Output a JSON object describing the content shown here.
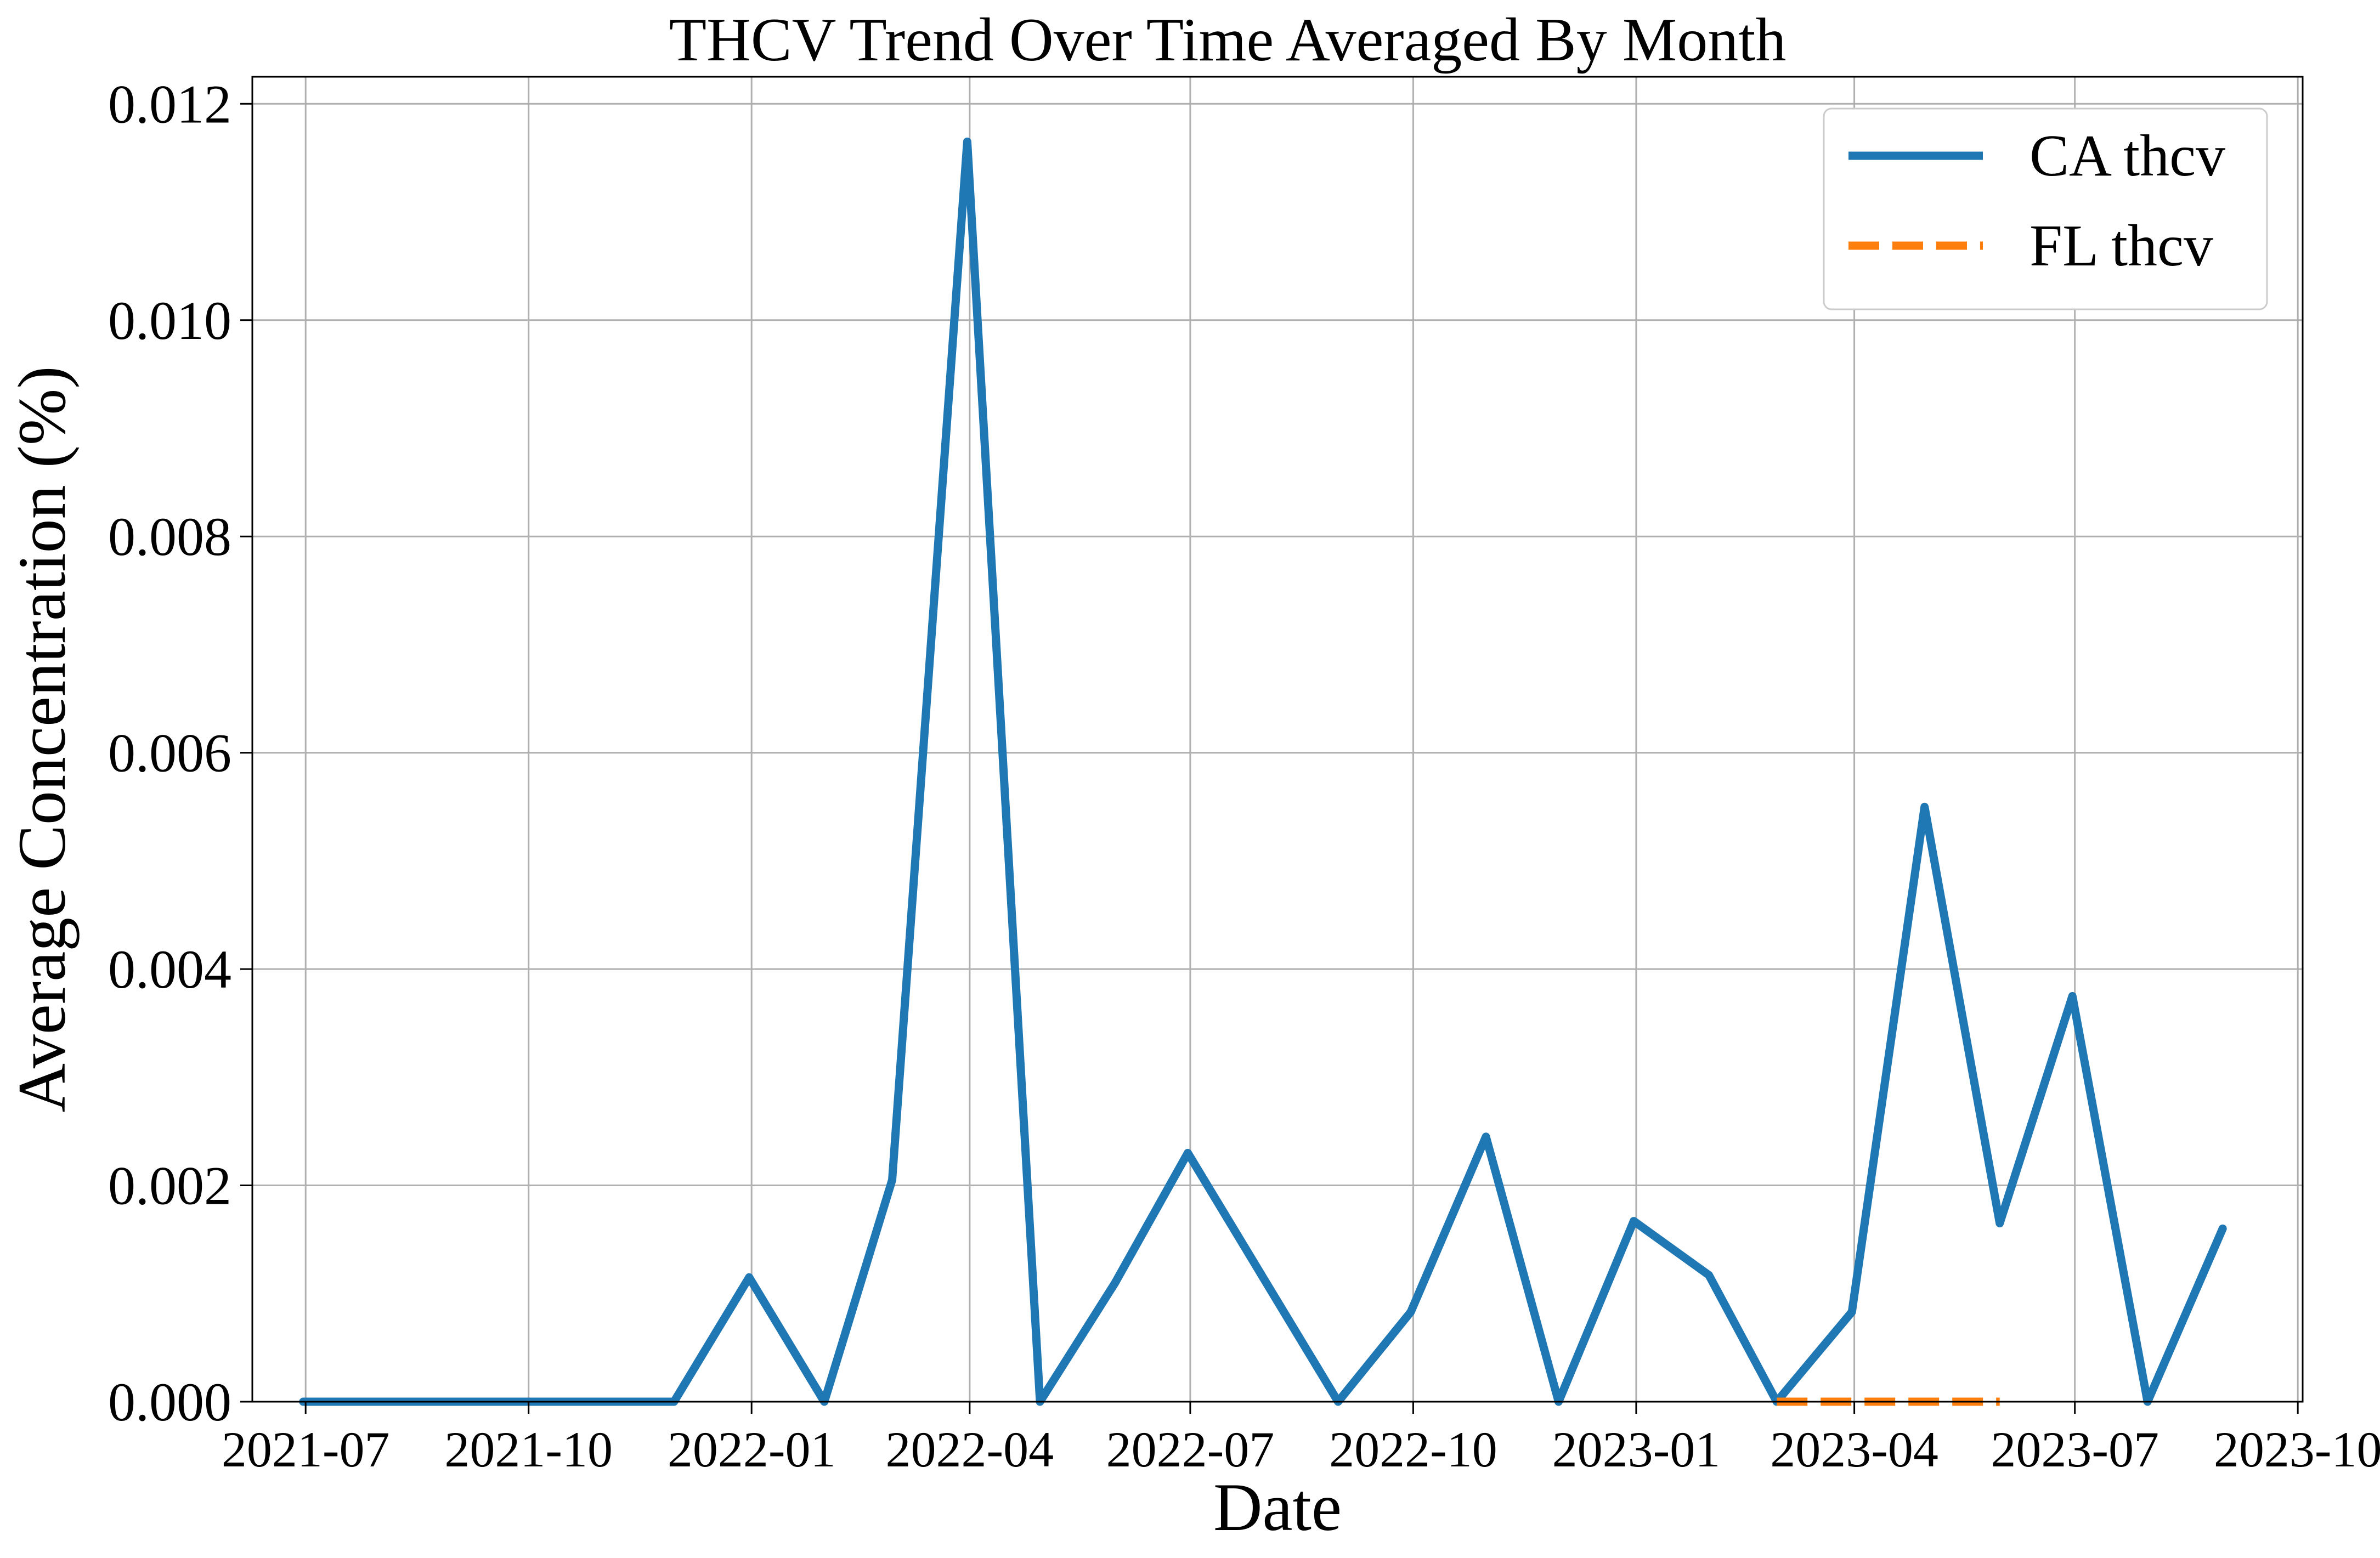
{
  "colors": {
    "ca": "#1f77b4",
    "fl": "#ff7f0e",
    "grid": "#b0b0b0",
    "axes": "#000000"
  },
  "chart_data": {
    "type": "line",
    "title": "THCV Trend Over Time Averaged By Month",
    "xlabel": "Date",
    "ylabel": "Average Concentration (%)",
    "xlim": [
      "2021-06-09",
      "2023-10-03"
    ],
    "ylim": [
      0,
      0.01225
    ],
    "x_ticks": [
      "2021-07",
      "2021-10",
      "2022-01",
      "2022-04",
      "2022-07",
      "2022-10",
      "2023-01",
      "2023-04",
      "2023-07",
      "2023-10"
    ],
    "y_ticks": [
      "0.000",
      "0.002",
      "0.004",
      "0.006",
      "0.008",
      "0.010",
      "0.012"
    ],
    "grid": true,
    "legend_position": "top-right",
    "series": [
      {
        "name": "CA thcv",
        "style": "solid",
        "color_key": "ca",
        "x": [
          "2021-06-30",
          "2021-07-31",
          "2021-08-31",
          "2021-09-30",
          "2021-10-31",
          "2021-11-30",
          "2021-12-31",
          "2022-01-31",
          "2022-02-28",
          "2022-03-31",
          "2022-04-30",
          "2022-05-31",
          "2022-06-30",
          "2022-07-31",
          "2022-08-31",
          "2022-09-30",
          "2022-10-31",
          "2022-11-30",
          "2022-12-31",
          "2023-01-31",
          "2023-02-28",
          "2023-03-31",
          "2023-04-30",
          "2023-05-31",
          "2023-06-30",
          "2023-07-31",
          "2023-08-31"
        ],
        "values": [
          0.0,
          0.0,
          0.0,
          0.0,
          0.0,
          0.0,
          0.00115,
          0.0,
          0.00205,
          0.01165,
          0.0,
          0.0011,
          0.0023,
          0.00115,
          0.0,
          0.00083,
          0.00245,
          0.0,
          0.00167,
          0.00117,
          0.0,
          0.00083,
          0.0055,
          0.00165,
          0.00375,
          0.0,
          0.0016
        ]
      },
      {
        "name": "FL thcv",
        "style": "dashed",
        "color_key": "fl",
        "x": [
          "2023-02-28",
          "2023-03-31",
          "2023-04-30",
          "2023-05-31"
        ],
        "values": [
          0.0,
          0.0,
          0.0,
          0.0
        ]
      }
    ]
  }
}
